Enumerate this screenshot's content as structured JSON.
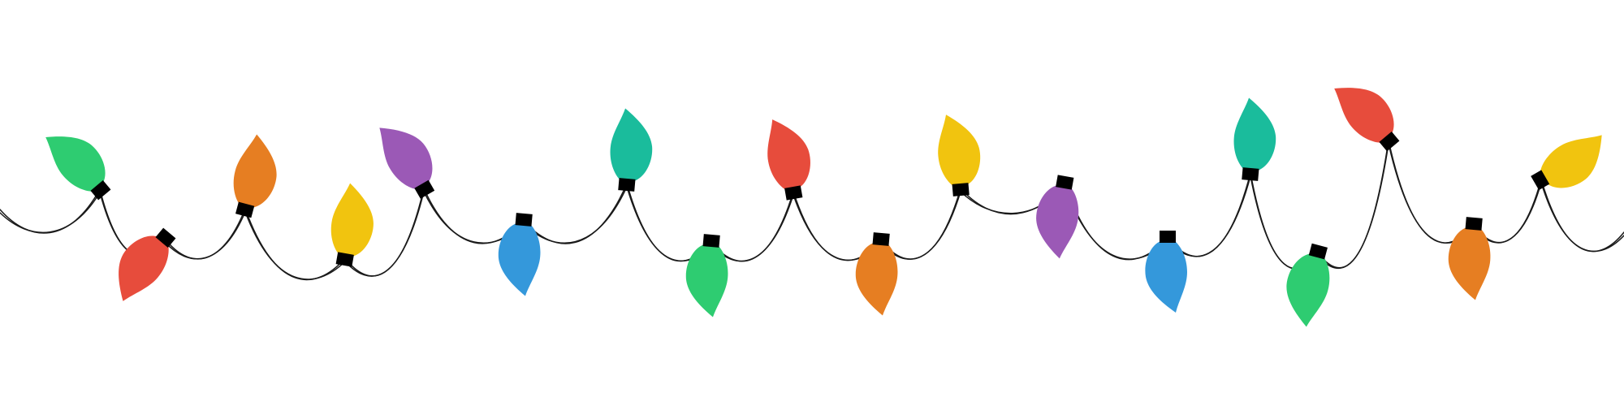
{
  "scene": {
    "subject": "string-lights",
    "wire_color": "#1a1a1a",
    "cap_color": "#000000",
    "background": "#ffffff"
  },
  "palette": {
    "green": "#2ecc71",
    "red": "#e74c3c",
    "orange": "#e67e22",
    "yellow": "#f1c40f",
    "purple": "#9b59b6",
    "blue": "#3498db",
    "teal": "#1abc9c"
  },
  "bulbs": [
    {
      "color": "green"
    },
    {
      "color": "red"
    },
    {
      "color": "orange"
    },
    {
      "color": "yellow"
    },
    {
      "color": "purple"
    },
    {
      "color": "blue"
    },
    {
      "color": "teal"
    },
    {
      "color": "green"
    },
    {
      "color": "red"
    },
    {
      "color": "orange"
    },
    {
      "color": "yellow"
    },
    {
      "color": "purple"
    },
    {
      "color": "blue"
    },
    {
      "color": "teal"
    },
    {
      "color": "green"
    },
    {
      "color": "red"
    },
    {
      "color": "orange"
    },
    {
      "color": "yellow"
    }
  ]
}
